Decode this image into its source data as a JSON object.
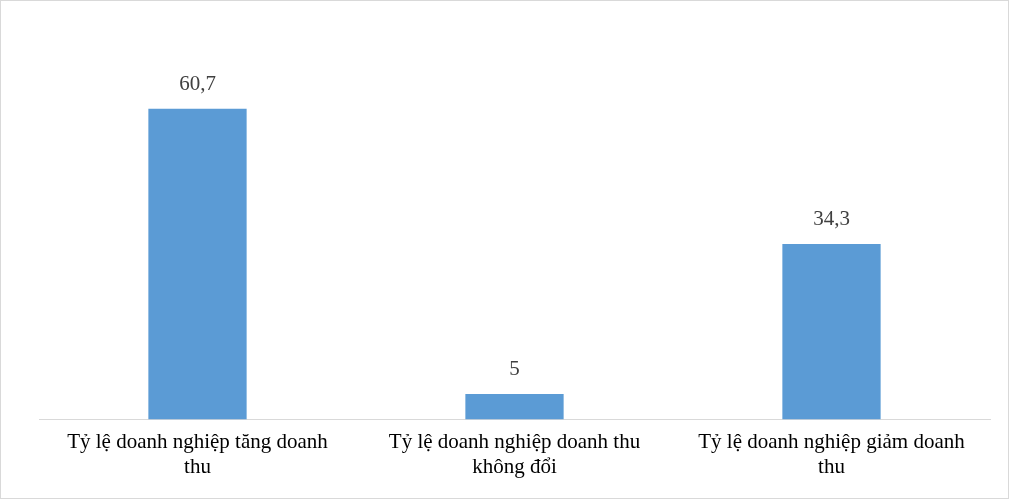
{
  "chart_data": {
    "type": "bar",
    "categories": [
      "Tỷ lệ doanh nghiệp tăng doanh thu",
      "Tỷ lệ doanh nghiệp doanh thu không đổi",
      "Tỷ lệ doanh nghiệp giảm doanh thu"
    ],
    "values": [
      60.7,
      5,
      34.3
    ],
    "value_labels": [
      "60,7",
      "5",
      "34,3"
    ],
    "color": "#5b9bd5",
    "grid": false,
    "legend": false
  }
}
